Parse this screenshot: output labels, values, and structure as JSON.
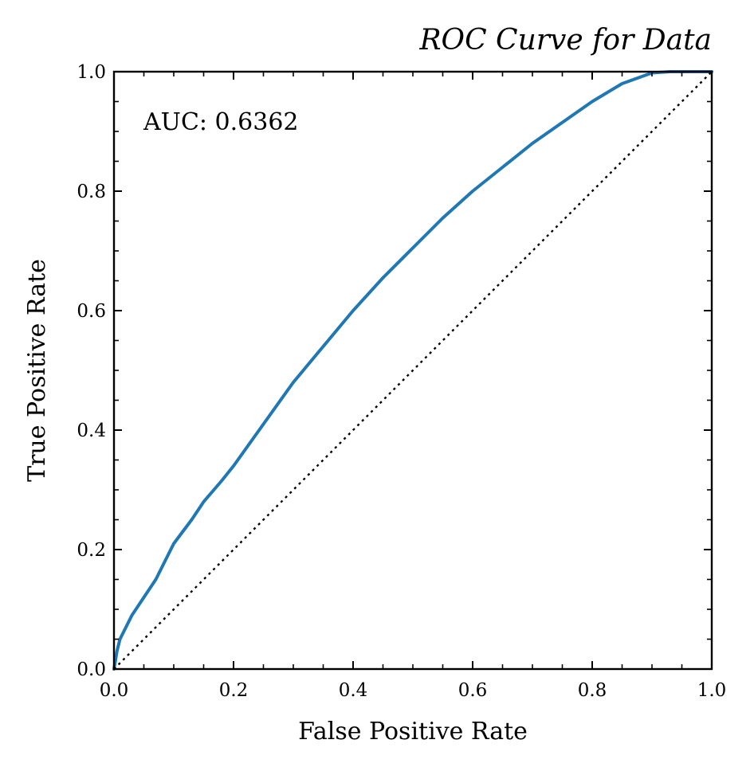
{
  "chart_data": {
    "type": "line",
    "title": "ROC Curve for Data",
    "xlabel": "False Positive Rate",
    "ylabel": "True Positive Rate",
    "xlim": [
      0.0,
      1.0
    ],
    "ylim": [
      0.0,
      1.0
    ],
    "x_ticks": [
      "0.0",
      "0.2",
      "0.4",
      "0.6",
      "0.8",
      "1.0"
    ],
    "y_ticks": [
      "0.0",
      "0.2",
      "0.4",
      "0.6",
      "0.8",
      "1.0"
    ],
    "grid": false,
    "annotation": "AUC: 0.6362",
    "series": [
      {
        "line_color": "#1f77b4",
        "line_style": "solid",
        "x": [
          0.0,
          0.005,
          0.01,
          0.02,
          0.03,
          0.05,
          0.07,
          0.1,
          0.13,
          0.15,
          0.18,
          0.2,
          0.25,
          0.3,
          0.35,
          0.4,
          0.45,
          0.5,
          0.55,
          0.6,
          0.65,
          0.7,
          0.75,
          0.8,
          0.85,
          0.9,
          0.93,
          1.0
        ],
        "y": [
          0.0,
          0.03,
          0.05,
          0.07,
          0.09,
          0.12,
          0.15,
          0.21,
          0.25,
          0.28,
          0.315,
          0.34,
          0.41,
          0.48,
          0.54,
          0.6,
          0.655,
          0.705,
          0.755,
          0.8,
          0.84,
          0.88,
          0.915,
          0.95,
          0.98,
          0.998,
          1.0,
          1.0
        ]
      },
      {
        "line_color": "#000000",
        "line_style": "dotted",
        "x": [
          0.0,
          1.0
        ],
        "y": [
          0.0,
          1.0
        ]
      }
    ]
  }
}
